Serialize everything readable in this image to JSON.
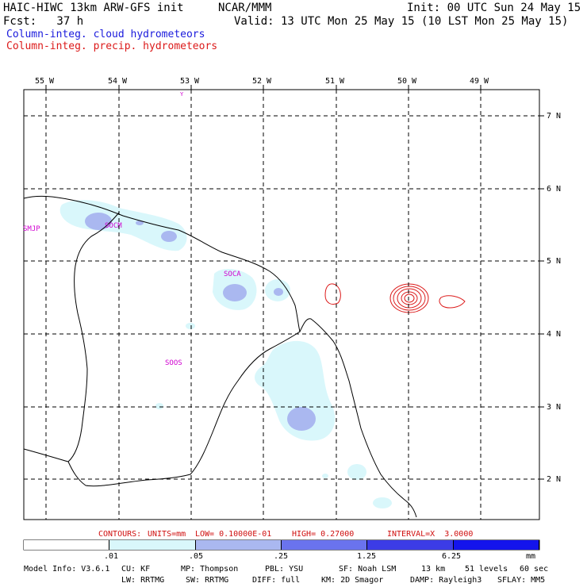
{
  "header": {
    "title_left": "HAIC-HIWC 13km ARW-GFS init",
    "title_center": "NCAR/MMM",
    "init": "Init: 00 UTC Sun 24 May 15",
    "fcst": "Fcst:   37 h",
    "valid": "Valid: 13 UTC Mon 25 May 15 (10 LST Mon 25 May 15)",
    "field1": "Column-integ. cloud hydrometeors",
    "field2": "Column-integ. precip. hydrometeors"
  },
  "map": {
    "lon_labels": [
      "55 W",
      "54 W",
      "53 W",
      "52 W",
      "51 W",
      "50 W",
      "49 W"
    ],
    "lat_labels": [
      "7 N",
      "6 N",
      "5 N",
      "4 N",
      "3 N",
      "2 N"
    ],
    "stations": [
      "SMJP",
      "SOCM",
      "SOCA",
      "SOOS"
    ],
    "marker": "Y"
  },
  "contours": {
    "label": "CONTOURS:",
    "units": "UNITS=mm",
    "low": "LOW= 0.10000E-01",
    "high": "HIGH= 0.27000",
    "interval": "INTERVAL=X  3.0000"
  },
  "colorbar": {
    "colors": [
      "#ffffff",
      "#d9f7fb",
      "#aab8f0",
      "#6a73ee",
      "#3c3ce6",
      "#1414ec"
    ],
    "labels": [
      ".01",
      ".05",
      ".25",
      "1.25",
      "6.25"
    ],
    "units": "mm"
  },
  "footer": {
    "line1": [
      "Model Info: V3.6.1",
      "CU: KF",
      "MP: Thompson",
      "PBL: YSU",
      "SF: Noah LSM",
      "13 km",
      "51 levels",
      "60 sec"
    ],
    "line2": [
      "LW: RRTMG",
      "SW: RRTMG",
      "DIFF: full",
      "KM: 2D Smagor",
      "DAMP: Rayleigh3",
      "SFLAY: MM5"
    ]
  }
}
